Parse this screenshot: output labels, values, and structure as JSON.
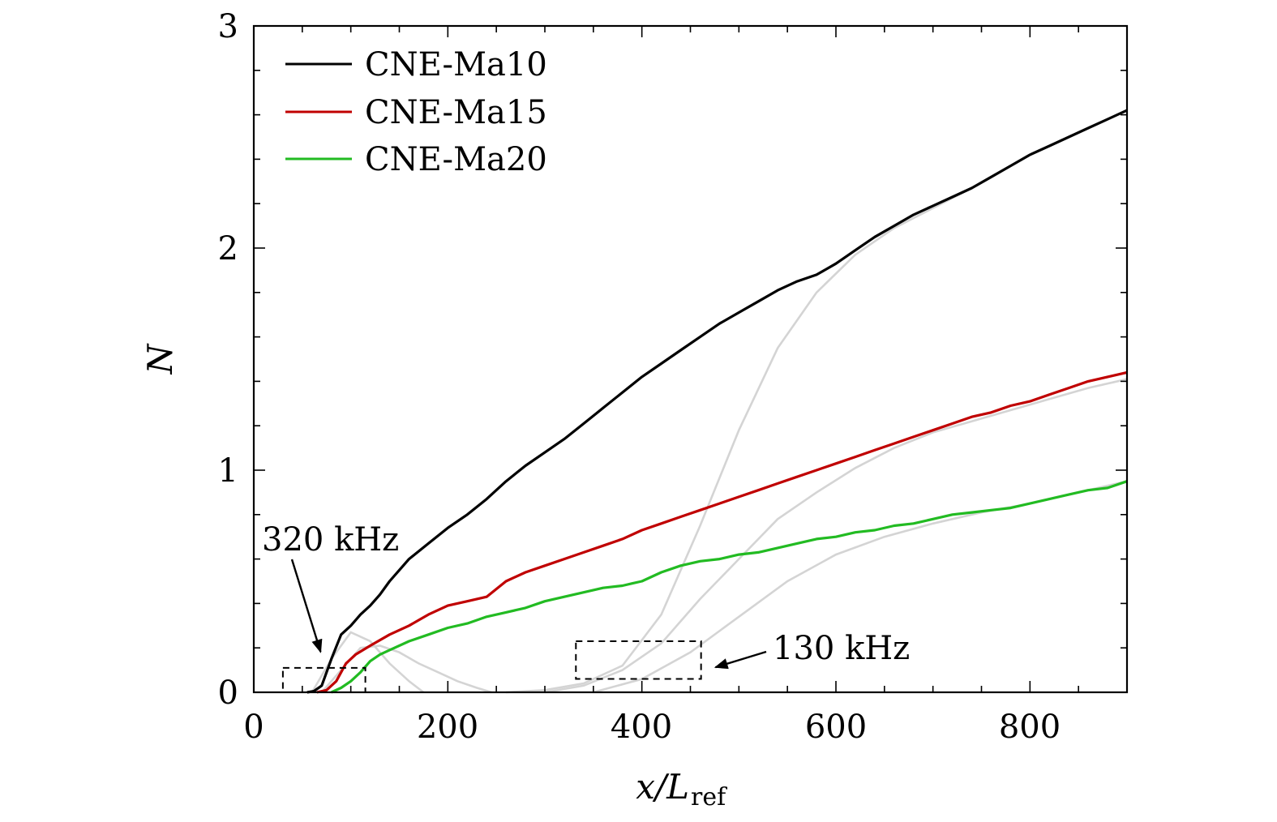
{
  "chart_data": {
    "type": "line",
    "xlabel": {
      "main": "x/L",
      "sub": "ref"
    },
    "ylabel": "N",
    "xlim": [
      0,
      900
    ],
    "ylim": [
      0,
      3
    ],
    "x_ticks": [
      0,
      200,
      400,
      600,
      800
    ],
    "y_ticks": [
      0,
      1,
      2,
      3
    ],
    "x_tick_labels": [
      "0",
      "200",
      "400",
      "600",
      "800"
    ],
    "y_tick_labels": [
      "0",
      "1",
      "2",
      "3"
    ],
    "x_minor_step": 50,
    "y_minor_step": 0.2,
    "grid": false,
    "legend_position": "top-left",
    "series": [
      {
        "name": "CNE-Ma10",
        "color": "#000000",
        "x": [
          55,
          62,
          70,
          80,
          90,
          100,
          110,
          120,
          130,
          140,
          150,
          160,
          180,
          200,
          220,
          240,
          260,
          280,
          300,
          320,
          340,
          360,
          380,
          400,
          420,
          440,
          460,
          480,
          500,
          520,
          540,
          560,
          580,
          600,
          620,
          640,
          660,
          680,
          700,
          720,
          740,
          760,
          780,
          800,
          820,
          840,
          860,
          880,
          900
        ],
        "y": [
          0,
          0.005,
          0.03,
          0.15,
          0.26,
          0.3,
          0.35,
          0.39,
          0.44,
          0.5,
          0.55,
          0.6,
          0.67,
          0.74,
          0.8,
          0.87,
          0.95,
          1.02,
          1.08,
          1.14,
          1.21,
          1.28,
          1.35,
          1.42,
          1.48,
          1.54,
          1.6,
          1.66,
          1.71,
          1.76,
          1.81,
          1.85,
          1.88,
          1.93,
          1.99,
          2.05,
          2.1,
          2.15,
          2.19,
          2.23,
          2.27,
          2.32,
          2.37,
          2.42,
          2.46,
          2.5,
          2.54,
          2.58,
          2.62
        ]
      },
      {
        "name": "CNE-Ma15",
        "color": "#c00000",
        "x": [
          65,
          75,
          85,
          95,
          105,
          120,
          140,
          160,
          180,
          200,
          220,
          240,
          260,
          280,
          300,
          320,
          340,
          360,
          380,
          400,
          420,
          440,
          460,
          480,
          500,
          520,
          540,
          560,
          580,
          600,
          620,
          640,
          660,
          680,
          700,
          720,
          740,
          760,
          780,
          800,
          820,
          840,
          860,
          880,
          900
        ],
        "y": [
          0,
          0.01,
          0.05,
          0.13,
          0.17,
          0.21,
          0.26,
          0.3,
          0.35,
          0.39,
          0.41,
          0.43,
          0.5,
          0.54,
          0.57,
          0.6,
          0.63,
          0.66,
          0.69,
          0.73,
          0.76,
          0.79,
          0.82,
          0.85,
          0.88,
          0.91,
          0.94,
          0.97,
          1.0,
          1.03,
          1.06,
          1.09,
          1.12,
          1.15,
          1.18,
          1.21,
          1.24,
          1.26,
          1.29,
          1.31,
          1.34,
          1.37,
          1.4,
          1.42,
          1.44
        ]
      },
      {
        "name": "CNE-Ma20",
        "color": "#22bb22",
        "x": [
          80,
          90,
          100,
          110,
          120,
          130,
          140,
          160,
          180,
          200,
          220,
          240,
          260,
          280,
          300,
          320,
          340,
          360,
          380,
          390,
          400,
          420,
          440,
          460,
          480,
          500,
          520,
          540,
          560,
          580,
          600,
          620,
          640,
          660,
          680,
          700,
          720,
          740,
          760,
          780,
          800,
          820,
          840,
          860,
          880,
          900
        ],
        "y": [
          0,
          0.02,
          0.05,
          0.09,
          0.14,
          0.17,
          0.19,
          0.23,
          0.26,
          0.29,
          0.31,
          0.34,
          0.36,
          0.38,
          0.41,
          0.43,
          0.45,
          0.47,
          0.48,
          0.49,
          0.5,
          0.54,
          0.57,
          0.59,
          0.6,
          0.62,
          0.63,
          0.65,
          0.67,
          0.69,
          0.7,
          0.72,
          0.73,
          0.75,
          0.76,
          0.78,
          0.8,
          0.81,
          0.82,
          0.83,
          0.85,
          0.87,
          0.89,
          0.91,
          0.92,
          0.95
        ]
      }
    ],
    "background_curves": {
      "color": "#d4d4d4",
      "curves": [
        {
          "x": [
            60,
            80,
            100,
            120,
            140,
            160,
            175
          ],
          "y": [
            0,
            0.15,
            0.27,
            0.23,
            0.13,
            0.05,
            0
          ]
        },
        {
          "x": [
            70,
            90,
            110,
            130,
            150,
            170,
            190,
            210,
            230,
            245
          ],
          "y": [
            0,
            0.1,
            0.2,
            0.21,
            0.18,
            0.13,
            0.09,
            0.05,
            0.02,
            0
          ]
        },
        {
          "x": [
            260,
            300,
            340,
            380,
            420,
            460,
            500,
            540,
            580,
            620,
            660,
            700,
            740
          ],
          "y": [
            0,
            0.01,
            0.04,
            0.12,
            0.35,
            0.75,
            1.18,
            1.55,
            1.8,
            1.97,
            2.09,
            2.18,
            2.27
          ]
        },
        {
          "x": [
            300,
            340,
            380,
            420,
            460,
            500,
            540,
            580,
            620,
            660,
            700,
            740,
            780,
            820,
            860,
            900
          ],
          "y": [
            0,
            0.03,
            0.1,
            0.22,
            0.42,
            0.6,
            0.78,
            0.9,
            1.01,
            1.1,
            1.17,
            1.22,
            1.27,
            1.32,
            1.37,
            1.41
          ]
        },
        {
          "x": [
            350,
            400,
            450,
            500,
            550,
            600,
            650,
            700,
            750,
            800,
            850,
            900
          ],
          "y": [
            0,
            0.06,
            0.18,
            0.34,
            0.5,
            0.62,
            0.7,
            0.76,
            0.81,
            0.85,
            0.9,
            0.95
          ]
        }
      ]
    },
    "annotations": [
      {
        "text": "320 kHz",
        "box_x": [
          30,
          115
        ],
        "box_y": [
          0,
          0.11
        ],
        "arrow_to": [
          58,
          0.16
        ]
      },
      {
        "text": "130 kHz",
        "box_x": [
          332,
          461
        ],
        "box_y": [
          0.06,
          0.23
        ],
        "arrow_to": [
          470,
          0.16
        ]
      }
    ]
  }
}
